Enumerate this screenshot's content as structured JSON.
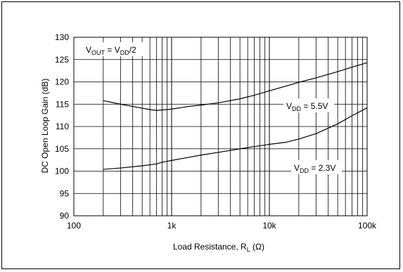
{
  "chart_data": {
    "type": "line",
    "title": "",
    "xlabel": {
      "main": "Load Resistance, R",
      "sub": "L",
      "unit": " (Ω)"
    },
    "ylabel": "DC Open Loop Gain (dB)",
    "x_scale": "log",
    "xlim": [
      100,
      100000
    ],
    "ylim": [
      90,
      130
    ],
    "x_ticks": [
      {
        "value": 100,
        "label": "100"
      },
      {
        "value": 1000,
        "label": "1k"
      },
      {
        "value": 10000,
        "label": "10k"
      },
      {
        "value": 100000,
        "label": "100k"
      }
    ],
    "y_ticks": [
      90,
      95,
      100,
      105,
      110,
      115,
      120,
      125,
      130
    ],
    "grid": true,
    "condition": {
      "v": "V",
      "v_sub": "OUT",
      "eq": " = V",
      "dd_sub": "DD",
      "tail": "/2"
    },
    "series": [
      {
        "name": "VDD = 5.5V",
        "label": {
          "v": "V",
          "sub": "DD",
          "rest": " = 5.5V"
        },
        "x": [
          200,
          300,
          400,
          500,
          600,
          700,
          800,
          1000,
          1500,
          2000,
          3000,
          5000,
          7000,
          10000,
          15000,
          20000,
          30000,
          50000,
          70000,
          100000
        ],
        "y": [
          115.8,
          115.0,
          114.5,
          114.1,
          113.8,
          113.6,
          113.7,
          113.9,
          114.5,
          114.8,
          115.3,
          116.2,
          117.0,
          118.0,
          119.1,
          119.9,
          120.9,
          122.3,
          123.3,
          124.3
        ]
      },
      {
        "name": "VDD = 2.3V",
        "label": {
          "v": "V",
          "sub": "DD",
          "rest": " = 2.3V"
        },
        "x": [
          200,
          300,
          500,
          700,
          800,
          1000,
          1500,
          2000,
          3000,
          5000,
          7000,
          10000,
          15000,
          20000,
          30000,
          50000,
          70000,
          100000
        ],
        "y": [
          100.4,
          100.7,
          101.2,
          101.6,
          102.0,
          102.4,
          103.1,
          103.6,
          104.2,
          105.0,
          105.5,
          106.0,
          106.5,
          107.2,
          108.4,
          110.6,
          112.4,
          114.2
        ]
      }
    ]
  }
}
